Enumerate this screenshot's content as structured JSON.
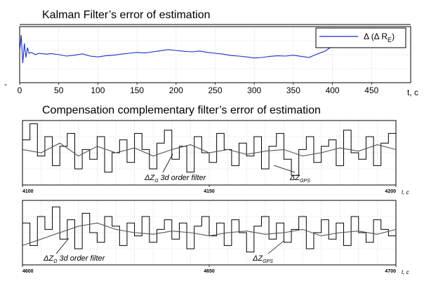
{
  "chart_data": [
    {
      "type": "line",
      "title": "Kalman Filter’s error of estimation",
      "xlabel": "t, c",
      "xlim": [
        0,
        500
      ],
      "ylim": [
        -1,
        1
      ],
      "x_ticks": [
        "0",
        "50",
        "100",
        "150",
        "200",
        "250",
        "300",
        "350",
        "400",
        "450"
      ],
      "y_tick_label": "-",
      "grid": true,
      "legend": {
        "placement": "top-right",
        "prefix": "Δ (Δ R",
        "subscript": "E",
        "suffix": ")"
      },
      "series": [
        {
          "color": "#1a2fd0",
          "x": [
            0,
            2,
            4,
            6,
            8,
            10,
            12,
            15,
            20,
            25,
            30,
            35,
            40,
            50,
            60,
            70,
            80,
            90,
            100,
            110,
            120,
            130,
            140,
            150,
            160,
            170,
            180,
            190,
            200,
            210,
            220,
            230,
            240,
            250,
            260,
            270,
            280,
            290,
            300,
            310,
            320,
            330,
            340,
            350,
            360,
            370,
            380,
            390,
            400
          ],
          "y": [
            0.1,
            0.7,
            -0.3,
            0.4,
            -0.1,
            0.25,
            0.05,
            0.08,
            0.0,
            0.05,
            0.03,
            0.02,
            0.04,
            0.0,
            -0.05,
            -0.02,
            0.03,
            -0.05,
            -0.08,
            -0.04,
            -0.02,
            0.02,
            0.05,
            0.08,
            0.06,
            0.1,
            0.14,
            0.18,
            0.15,
            0.12,
            0.1,
            0.13,
            0.08,
            0.05,
            0.02,
            -0.03,
            -0.05,
            -0.08,
            -0.12,
            -0.1,
            -0.06,
            -0.04,
            -0.05,
            -0.02,
            -0.06,
            -0.1,
            0.02,
            0.12,
            0.3
          ]
        }
      ]
    },
    {
      "type": "line",
      "title": "Compensation complementary filter’s error of estimation",
      "xlabel": "t, c",
      "xlim": [
        4100,
        4200
      ],
      "ylim": [
        -1,
        1
      ],
      "x_ticks": [
        "4100",
        "4150",
        "4200"
      ],
      "grid": true,
      "annotations": [
        {
          "prefix": "ΔZ",
          "subscript": "Ω",
          "suffix": " 3d order filter"
        },
        {
          "prefix": "ΔZ",
          "subscript": "GPS",
          "suffix": ""
        }
      ],
      "series": [
        {
          "color": "#000000",
          "step": true,
          "x": [
            4100,
            4102,
            4104,
            4106,
            4108,
            4110,
            4112,
            4114,
            4116,
            4118,
            4120,
            4122,
            4124,
            4126,
            4128,
            4130,
            4132,
            4134,
            4136,
            4138,
            4140,
            4142,
            4144,
            4146,
            4148,
            4150,
            4152,
            4154,
            4156,
            4158,
            4160,
            4162,
            4164,
            4166,
            4168,
            4170,
            4172,
            4174,
            4176,
            4178,
            4180,
            4182,
            4184,
            4186,
            4188,
            4190,
            4192,
            4194,
            4196,
            4198
          ],
          "y": [
            0.4,
            0.9,
            -0.1,
            0.5,
            -0.4,
            0.2,
            0.6,
            -0.5,
            0.1,
            -0.2,
            0.5,
            -0.6,
            0.0,
            0.4,
            -0.3,
            0.6,
            0.1,
            -0.5,
            0.3,
            0.7,
            -0.2,
            0.2,
            -0.6,
            0.5,
            0.0,
            -0.3,
            0.6,
            0.1,
            -0.4,
            0.3,
            -0.1,
            0.5,
            -0.5,
            0.2,
            0.6,
            -0.2,
            -0.7,
            0.1,
            0.5,
            -0.3,
            0.2,
            0.4,
            -0.4,
            0.7,
            0.0,
            -0.2,
            0.5,
            -0.4,
            0.3,
            0.6
          ]
        },
        {
          "color": "#555555",
          "x": [
            4100,
            4105,
            4110,
            4115,
            4120,
            4125,
            4130,
            4135,
            4140,
            4145,
            4150,
            4155,
            4160,
            4165,
            4170,
            4175,
            4180,
            4185,
            4190,
            4195,
            4200
          ],
          "y": [
            0.1,
            0.0,
            0.3,
            -0.1,
            0.2,
            0.0,
            0.15,
            -0.1,
            0.1,
            0.25,
            0.0,
            0.1,
            -0.05,
            0.05,
            0.1,
            -0.1,
            0.0,
            0.15,
            0.05,
            0.25,
            0.1
          ]
        }
      ]
    },
    {
      "type": "line",
      "xlabel": "t, c",
      "xlim": [
        4600,
        4700
      ],
      "ylim": [
        -1,
        1
      ],
      "x_ticks": [
        "4600",
        "4650",
        "4700"
      ],
      "grid": true,
      "annotations": [
        {
          "prefix": "ΔZ",
          "subscript": "Ω",
          "suffix": " 3d order filter"
        },
        {
          "prefix": "ΔZ",
          "subscript": "GPS",
          "suffix": ""
        }
      ],
      "series": [
        {
          "color": "#000000",
          "step": true,
          "x": [
            4600,
            4602,
            4604,
            4606,
            4608,
            4610,
            4612,
            4614,
            4616,
            4618,
            4620,
            4622,
            4624,
            4626,
            4628,
            4630,
            4632,
            4634,
            4636,
            4638,
            4640,
            4642,
            4644,
            4646,
            4648,
            4650,
            4652,
            4654,
            4656,
            4658,
            4660,
            4662,
            4664,
            4666,
            4668,
            4670,
            4672,
            4674,
            4676,
            4678,
            4680,
            4682,
            4684,
            4686,
            4688,
            4690,
            4692,
            4694,
            4696,
            4698
          ],
          "y": [
            0.3,
            -0.4,
            0.5,
            0.1,
            0.8,
            -0.2,
            0.4,
            -0.5,
            0.6,
            0.0,
            -0.3,
            0.5,
            0.2,
            -0.4,
            0.3,
            -0.1,
            0.5,
            -0.3,
            0.1,
            0.4,
            -0.2,
            0.3,
            -0.5,
            0.2,
            0.5,
            -0.1,
            0.3,
            -0.4,
            0.4,
            0.0,
            -0.6,
            0.2,
            0.5,
            -0.2,
            0.3,
            -0.3,
            0.1,
            0.5,
            -0.5,
            0.0,
            0.4,
            -0.2,
            0.3,
            -0.4,
            0.5,
            0.0,
            -0.3,
            0.4,
            0.1,
            -0.1
          ]
        },
        {
          "color": "#555555",
          "x": [
            4600,
            4605,
            4610,
            4615,
            4620,
            4625,
            4630,
            4635,
            4640,
            4645,
            4650,
            4655,
            4660,
            4665,
            4670,
            4675,
            4680,
            4685,
            4690,
            4695,
            4700
          ],
          "y": [
            -0.4,
            -0.2,
            0.0,
            0.2,
            0.3,
            0.1,
            0.0,
            -0.05,
            0.05,
            0.0,
            -0.1,
            0.0,
            0.05,
            -0.05,
            0.0,
            0.1,
            -0.1,
            0.0,
            0.05,
            -0.05,
            0.1
          ]
        }
      ]
    }
  ]
}
